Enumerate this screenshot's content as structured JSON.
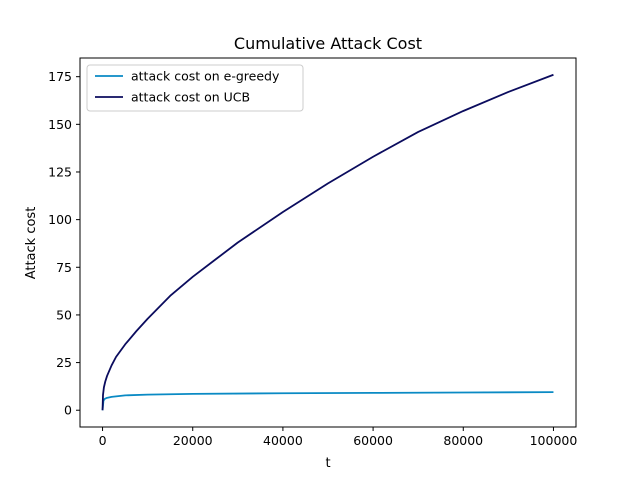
{
  "chart_data": {
    "type": "line",
    "title": "Cumulative Attack Cost",
    "xlabel": "t",
    "ylabel": "Attack cost",
    "xlim": [
      -5000,
      105000
    ],
    "ylim": [
      -8.8,
      184.8
    ],
    "xticks": [
      0,
      20000,
      40000,
      60000,
      80000,
      100000
    ],
    "yticks": [
      0,
      25,
      50,
      75,
      100,
      125,
      150,
      175
    ],
    "grid": false,
    "legend_position": "top-left",
    "series": [
      {
        "name": "attack cost on e-greedy",
        "color": "#0a8ac4",
        "x": [
          0,
          200,
          500,
          1000,
          2000,
          5000,
          10000,
          20000,
          40000,
          60000,
          80000,
          100000
        ],
        "y": [
          0,
          5.0,
          6.0,
          6.5,
          7.0,
          7.8,
          8.2,
          8.6,
          8.9,
          9.1,
          9.3,
          9.5
        ]
      },
      {
        "name": "attack cost on UCB",
        "color": "#0b0c5e",
        "x": [
          0,
          100,
          300,
          600,
          1000,
          2000,
          3000,
          5000,
          7500,
          10000,
          15000,
          20000,
          25000,
          30000,
          40000,
          50000,
          60000,
          70000,
          80000,
          90000,
          100000
        ],
        "y": [
          0,
          8,
          12,
          15,
          18,
          23.5,
          28,
          34.5,
          41.5,
          48,
          60,
          70,
          79,
          88,
          104,
          119,
          133,
          146,
          157,
          167,
          176
        ]
      }
    ]
  }
}
